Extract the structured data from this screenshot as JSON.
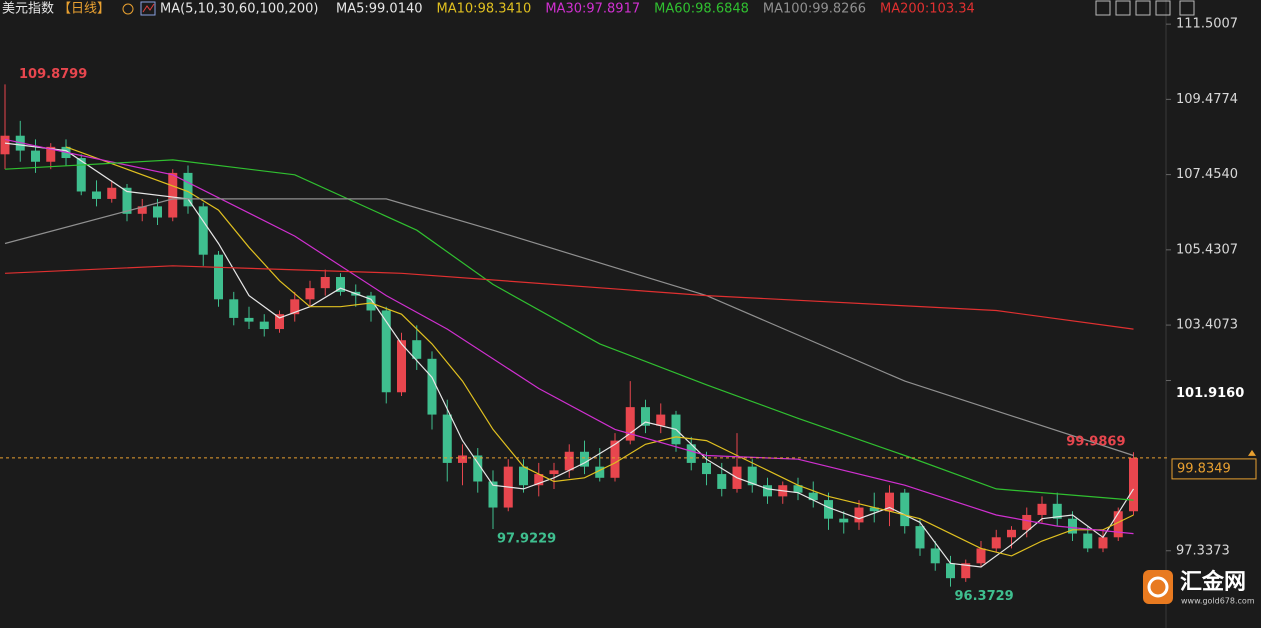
{
  "chart_data": {
    "type": "candlestick",
    "title": "美元指数",
    "period": "【日线】",
    "indicator": "MA(5,10,30,60,100,200)",
    "up_color": "#e8464e",
    "down_color": "#3fbf8f",
    "ylim": [
      95.26,
      112.15
    ],
    "yticks": [
      111.5007,
      109.4774,
      {
        "value": 107.454,
        "label": "107.4540"
      },
      105.4307,
      103.4073,
      97.3373
    ],
    "candles": {
      "open": [
        108.0,
        108.5,
        108.1,
        107.8,
        108.2,
        107.9,
        107.0,
        106.8,
        107.1,
        106.4,
        106.6,
        106.3,
        107.5,
        106.6,
        105.3,
        104.1,
        103.6,
        103.5,
        103.3,
        103.7,
        104.1,
        104.4,
        104.7,
        104.3,
        104.2,
        103.8,
        101.6,
        103.0,
        102.5,
        101.0,
        99.7,
        99.9,
        99.2,
        98.5,
        99.6,
        99.1,
        99.4,
        99.5,
        100.0,
        99.6,
        99.3,
        100.3,
        101.2,
        100.7,
        101.0,
        100.2,
        99.7,
        99.4,
        99.0,
        99.6,
        99.1,
        98.8,
        99.1,
        98.9,
        98.7,
        98.2,
        98.1,
        98.5,
        98.4,
        98.9,
        98.0,
        97.4,
        97.0,
        96.6,
        97.0,
        97.4,
        97.7,
        97.9,
        98.3,
        98.6,
        98.2,
        97.8,
        97.4,
        97.7,
        98.4
      ],
      "high": [
        109.8799,
        108.9,
        108.4,
        108.3,
        108.4,
        108.0,
        107.3,
        107.3,
        107.2,
        106.8,
        106.8,
        107.6,
        107.7,
        106.7,
        105.4,
        104.3,
        103.9,
        103.7,
        103.8,
        104.3,
        104.6,
        104.9,
        104.8,
        104.5,
        104.3,
        103.9,
        103.2,
        103.4,
        102.7,
        101.4,
        100.2,
        100.1,
        99.5,
        99.8,
        99.8,
        99.7,
        99.7,
        100.2,
        100.3,
        100.1,
        100.5,
        101.9,
        101.4,
        101.3,
        101.1,
        100.4,
        100.0,
        99.7,
        100.5,
        99.8,
        99.3,
        99.2,
        99.3,
        99.2,
        98.9,
        98.4,
        98.7,
        98.9,
        99.1,
        99.0,
        98.2,
        97.6,
        97.2,
        97.1,
        97.6,
        97.9,
        98.0,
        98.5,
        98.8,
        98.9,
        98.4,
        98.0,
        97.9,
        98.5,
        99.9869
      ],
      "low": [
        107.6,
        107.8,
        107.5,
        107.6,
        107.7,
        106.9,
        106.6,
        106.7,
        106.2,
        106.2,
        106.1,
        106.2,
        106.4,
        105.0,
        103.9,
        103.4,
        103.3,
        103.1,
        103.2,
        103.5,
        103.9,
        104.2,
        104.2,
        103.9,
        103.5,
        101.3,
        101.5,
        102.2,
        100.6,
        99.2,
        99.1,
        98.9,
        97.9229,
        98.4,
        98.9,
        98.8,
        99.0,
        99.3,
        99.4,
        99.2,
        99.2,
        100.2,
        100.5,
        100.5,
        100.0,
        99.5,
        99.1,
        98.8,
        98.9,
        98.9,
        98.6,
        98.6,
        98.7,
        98.5,
        97.9,
        97.8,
        97.9,
        98.1,
        98.0,
        97.8,
        97.2,
        96.8,
        96.3729,
        96.5,
        96.9,
        97.3,
        97.4,
        97.7,
        98.1,
        98.0,
        97.6,
        97.3,
        97.3,
        97.6,
        98.3
      ],
      "close": [
        108.5,
        108.1,
        107.8,
        108.2,
        107.9,
        107.0,
        106.8,
        107.1,
        106.4,
        106.6,
        106.3,
        107.5,
        106.6,
        105.3,
        104.1,
        103.6,
        103.5,
        103.3,
        103.7,
        104.1,
        104.4,
        104.7,
        104.3,
        104.2,
        103.8,
        101.6,
        103.0,
        102.5,
        101.0,
        99.7,
        99.9,
        99.2,
        98.5,
        99.6,
        99.1,
        99.4,
        99.5,
        100.0,
        99.6,
        99.3,
        100.3,
        101.2,
        100.7,
        101.0,
        100.2,
        99.7,
        99.4,
        99.0,
        99.6,
        99.1,
        98.8,
        99.1,
        98.9,
        98.7,
        98.2,
        98.1,
        98.5,
        98.4,
        98.9,
        98.0,
        97.4,
        97.0,
        96.6,
        97.0,
        97.4,
        97.7,
        97.9,
        98.3,
        98.6,
        98.2,
        97.8,
        97.4,
        97.7,
        98.4,
        99.8349
      ]
    },
    "series": [
      {
        "name": "MA5:99.0140",
        "color": "#e6e6e6",
        "x": [
          0,
          4,
          8,
          12,
          14,
          16,
          18,
          20,
          22,
          24,
          26,
          28,
          30,
          32,
          34,
          36,
          38,
          40,
          42,
          44,
          46,
          48,
          50,
          52,
          54,
          56,
          58,
          60,
          62,
          64,
          66,
          68,
          70,
          72,
          74
        ],
        "values": [
          108.3,
          108.1,
          107.0,
          106.8,
          105.6,
          104.2,
          103.6,
          103.9,
          104.4,
          104.1,
          102.9,
          102.0,
          100.3,
          99.1,
          99.0,
          99.3,
          99.7,
          100.2,
          100.8,
          100.6,
          99.8,
          99.3,
          99.0,
          98.9,
          98.5,
          98.2,
          98.5,
          98.1,
          97.0,
          96.9,
          97.5,
          98.2,
          98.3,
          97.7,
          99.0
        ]
      },
      {
        "name": "MA10:98.3410",
        "color": "#e0c020",
        "x": [
          4,
          8,
          12,
          14,
          16,
          18,
          20,
          22,
          24,
          26,
          28,
          30,
          32,
          34,
          36,
          38,
          40,
          42,
          44,
          46,
          48,
          50,
          52,
          54,
          56,
          58,
          60,
          62,
          64,
          66,
          68,
          70,
          72,
          74
        ],
        "values": [
          108.2,
          107.6,
          107.0,
          106.5,
          105.5,
          104.6,
          103.9,
          103.9,
          104.0,
          103.7,
          102.9,
          101.9,
          100.6,
          99.6,
          99.2,
          99.3,
          99.7,
          100.2,
          100.4,
          100.3,
          99.9,
          99.5,
          99.1,
          98.8,
          98.6,
          98.4,
          98.2,
          97.8,
          97.4,
          97.2,
          97.6,
          97.9,
          97.9,
          98.3
        ]
      },
      {
        "name": "MA30:97.8917",
        "color": "#d030d0",
        "x": [
          0,
          11,
          19,
          25,
          29,
          35,
          40,
          46,
          52,
          59,
          65,
          69,
          74
        ],
        "values": [
          108.4,
          107.45,
          105.8,
          104.2,
          103.3,
          101.7,
          100.6,
          99.9,
          99.8,
          99.1,
          98.3,
          98.0,
          97.8
        ]
      },
      {
        "name": "MA60:98.6848",
        "color": "#30c030",
        "x": [
          0,
          11,
          19,
          27,
          32,
          39,
          46,
          52,
          59,
          65,
          74
        ],
        "values": [
          107.6,
          107.85,
          107.45,
          105.96,
          104.5,
          102.9,
          101.8,
          100.9,
          99.9,
          99.0,
          98.7
        ]
      },
      {
        "name": "MA100:99.8266",
        "color": "#909090",
        "x": [
          0,
          11,
          25,
          32,
          46,
          59,
          74
        ],
        "values": [
          105.6,
          106.8,
          106.8,
          105.96,
          104.2,
          101.9,
          99.9
        ]
      },
      {
        "name": "MA200:103.34",
        "color": "#e03030",
        "x": [
          0,
          11,
          26,
          46,
          65,
          74
        ],
        "values": [
          104.8,
          105.0,
          104.8,
          104.2,
          103.8,
          103.3
        ]
      }
    ],
    "annotations": [
      {
        "value": 109.8799,
        "index": 0,
        "color": "#e8464e"
      },
      {
        "value": 97.9229,
        "index": 32,
        "color": "#3fbf8f"
      },
      {
        "value": 96.3729,
        "index": 62,
        "color": "#3fbf8f"
      },
      {
        "value": 99.9869,
        "index": 74,
        "color": "#e8464e"
      }
    ],
    "last_price": {
      "value": 99.8349,
      "label": "99.8349"
    },
    "marker_price": {
      "value": 101.916,
      "label": "101.9160"
    },
    "watermark": {
      "name": "汇金网",
      "url": "www.gold678.com"
    }
  }
}
